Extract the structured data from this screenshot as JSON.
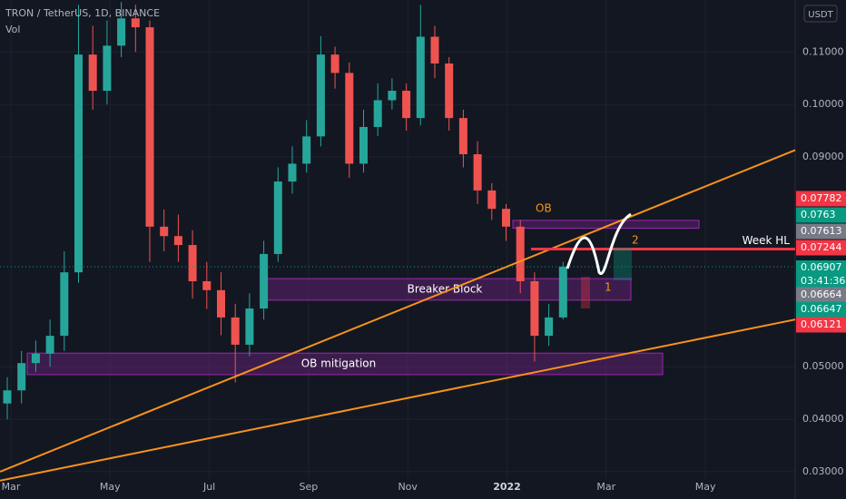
{
  "chart_data": {
    "type": "candlestick",
    "title": "TRON / TetherUS, 1D, BINANCE",
    "volume_label": "Vol",
    "currency": "USDT",
    "x_labels": [
      "Mar",
      "May",
      "Jul",
      "Sep",
      "Nov",
      "2022",
      "Mar",
      "May"
    ],
    "open": [
      0.043,
      0.0455,
      0.0507,
      0.0525,
      0.0559,
      0.068,
      0.1095,
      0.1026,
      0.1112,
      0.1164,
      0.1147,
      0.0767,
      0.0749,
      0.0732,
      0.0663,
      0.0646,
      0.0594,
      0.0542,
      0.0611,
      0.0715,
      0.0853,
      0.0887,
      0.0939,
      0.1095,
      0.106,
      0.0887,
      0.0957,
      0.1008,
      0.1026,
      0.0974,
      0.1129,
      0.1078,
      0.0974,
      0.0905,
      0.0836,
      0.0801,
      0.0767,
      0.0663,
      0.0559,
      0.0594
    ],
    "high": [
      0.048,
      0.053,
      0.055,
      0.059,
      0.072,
      0.119,
      0.115,
      0.116,
      0.1195,
      0.119,
      0.116,
      0.08,
      0.079,
      0.076,
      0.07,
      0.068,
      0.062,
      0.064,
      0.074,
      0.088,
      0.092,
      0.097,
      0.113,
      0.111,
      0.108,
      0.099,
      0.104,
      0.105,
      0.104,
      0.119,
      0.115,
      0.109,
      0.099,
      0.093,
      0.085,
      0.081,
      0.078,
      0.068,
      0.062,
      0.07
    ],
    "low": [
      0.04,
      0.043,
      0.049,
      0.05,
      0.053,
      0.066,
      0.099,
      0.1,
      0.109,
      0.11,
      0.07,
      0.072,
      0.07,
      0.063,
      0.061,
      0.056,
      0.047,
      0.052,
      0.059,
      0.07,
      0.083,
      0.087,
      0.092,
      0.103,
      0.086,
      0.087,
      0.094,
      0.099,
      0.095,
      0.096,
      0.105,
      0.095,
      0.088,
      0.081,
      0.078,
      0.074,
      0.064,
      0.051,
      0.054,
      0.059
    ],
    "close": [
      0.0455,
      0.0507,
      0.0525,
      0.0559,
      0.068,
      0.1095,
      0.1026,
      0.1112,
      0.1164,
      0.1147,
      0.0767,
      0.0749,
      0.0732,
      0.0663,
      0.0646,
      0.0594,
      0.0542,
      0.0611,
      0.0715,
      0.0853,
      0.0887,
      0.0939,
      0.1095,
      0.106,
      0.0887,
      0.0957,
      0.1008,
      0.1026,
      0.0974,
      0.1129,
      0.1078,
      0.0974,
      0.0905,
      0.0836,
      0.0801,
      0.0767,
      0.0663,
      0.0559,
      0.0594,
      0.0691
    ],
    "up_color": "#26a69a",
    "down_color": "#ef5350",
    "ylim": [
      0.0286,
      0.1199
    ],
    "yticks": [
      {
        "value": 0.03,
        "label": "0.03000"
      },
      {
        "value": 0.04,
        "label": "0.04000"
      },
      {
        "value": 0.05,
        "label": "0.05000"
      },
      {
        "value": 0.09,
        "label": "0.09000"
      },
      {
        "value": 0.1,
        "label": "0.10000"
      },
      {
        "value": 0.11,
        "label": "0.11000"
      }
    ],
    "grid": true,
    "zones": [
      {
        "label": "OB",
        "top": 0.0779,
        "bottom": 0.0764
      },
      {
        "label": "Breaker Block",
        "top": 0.0668,
        "bottom": 0.0627
      },
      {
        "label": "OB mitigation",
        "top": 0.0526,
        "bottom": 0.0485
      }
    ],
    "trendlines": [
      {
        "start": 0.03,
        "end": 0.0913,
        "color": "#f7931a"
      },
      {
        "start": 0.0283,
        "end": 0.059,
        "color": "#f7931a"
      }
    ],
    "level": {
      "label": "Week HL",
      "value": 0.07244,
      "color": "#f23645"
    },
    "wave_labels": [
      "1",
      "2"
    ],
    "price_labels": [
      {
        "value": 0.07782,
        "color": "#f23645"
      },
      {
        "value": 0.0763,
        "color": "#089981"
      },
      {
        "value": 0.07613,
        "color": "#787b86"
      },
      {
        "value": 0.07244,
        "color": "#f23645"
      },
      {
        "value": 0.06907,
        "color": "#089981",
        "countdown": "03:41:36"
      },
      {
        "value": 0.06664,
        "color": "#787b86"
      },
      {
        "value": 0.06647,
        "color": "#089981"
      },
      {
        "value": 0.06121,
        "color": "#f23645"
      }
    ]
  }
}
